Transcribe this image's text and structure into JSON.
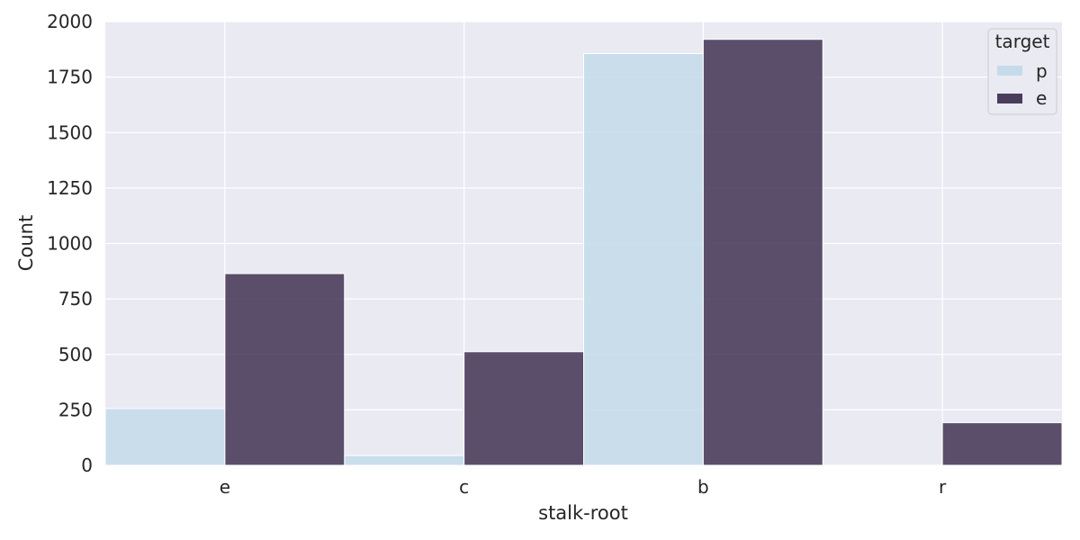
{
  "chart_data": {
    "type": "bar",
    "xlabel": "stalk-root",
    "ylabel": "Count",
    "categories": [
      "e",
      "c",
      "b",
      "r"
    ],
    "series": [
      {
        "name": "p",
        "values": [
          256,
          44,
          1856,
          0
        ],
        "color": "#c6dbea"
      },
      {
        "name": "e",
        "values": [
          864,
          512,
          1920,
          192
        ],
        "color": "#4a3d5c"
      }
    ],
    "ylim": [
      0,
      2000
    ],
    "yticks": [
      0,
      250,
      500,
      750,
      1000,
      1250,
      1500,
      1750,
      2000
    ],
    "legend": {
      "title": "target",
      "placement": "top-right"
    },
    "grid": true,
    "background_color": "#eaeaf2",
    "grid_color": "#ffffff"
  }
}
